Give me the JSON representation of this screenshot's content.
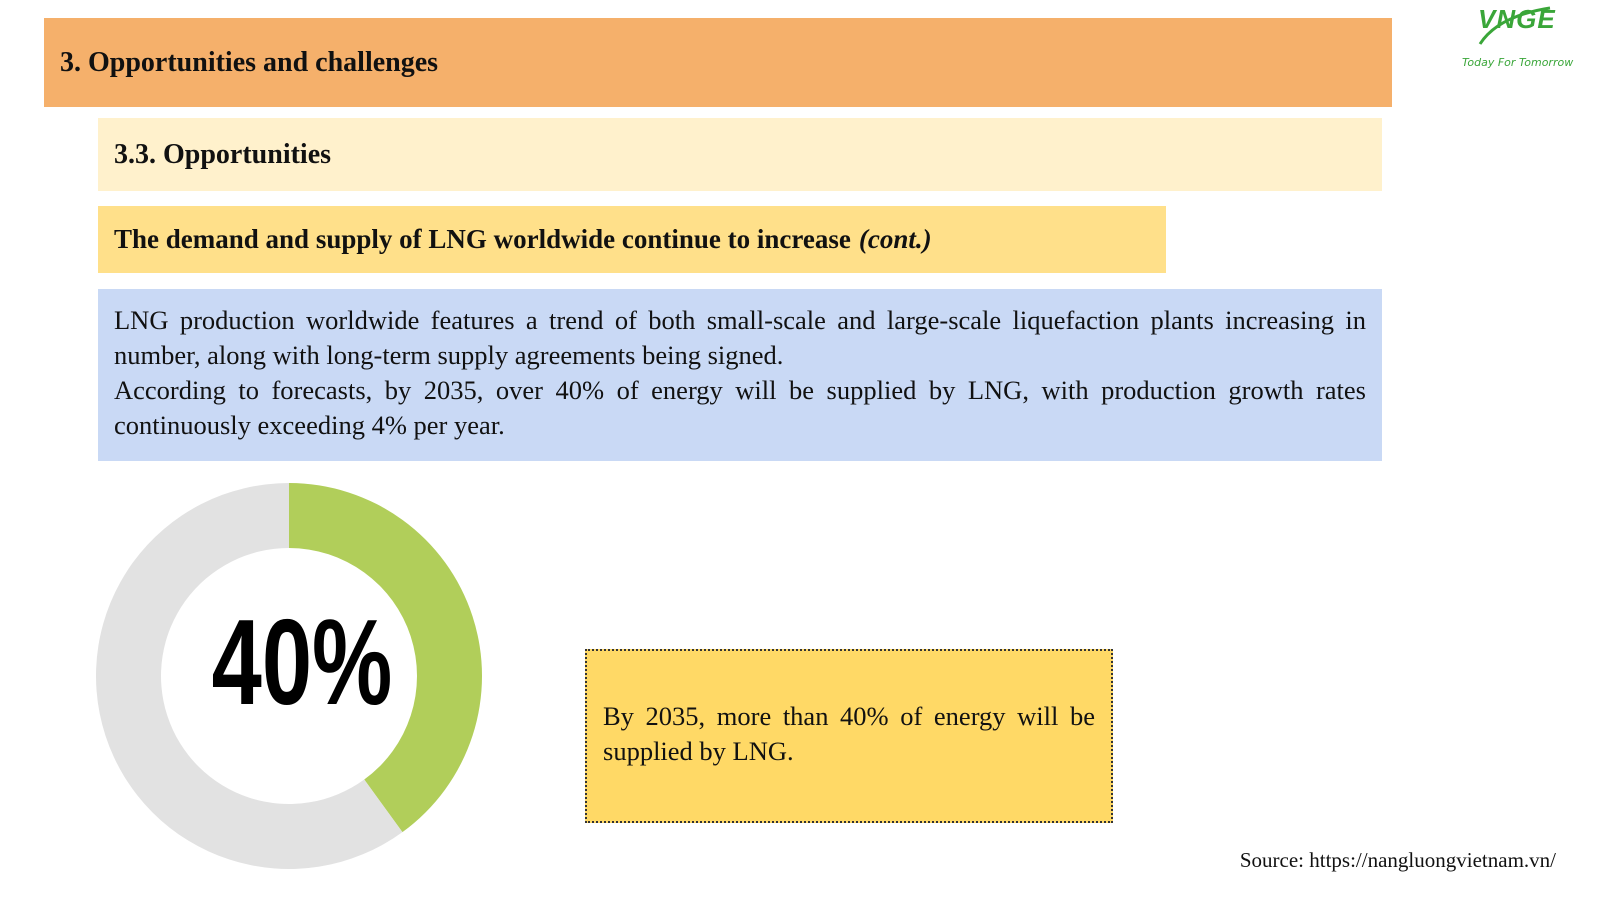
{
  "header": {
    "section_title": "3. Opportunities and challenges",
    "subsection_title": "3.3. Opportunities",
    "headline": "The demand and supply of LNG worldwide continue to increase",
    "headline_suffix": "(cont.)"
  },
  "body": {
    "paragraph_1": "LNG production worldwide features a trend of both small-scale and large-scale liquefaction plants increasing in number, along with long-term supply agreements being signed.",
    "paragraph_2": "According to forecasts, by 2035, over 40% of energy will be supplied by LNG, with production growth rates continuously exceeding 4% per year."
  },
  "chart_data": {
    "type": "pie",
    "style": "donut",
    "center_label": "40%",
    "slices": [
      {
        "value": 40,
        "color": "#b1ce5a"
      },
      {
        "value": 60,
        "color": "#e2e2e2"
      }
    ]
  },
  "callout": {
    "text": "By 2035, more than 40% of energy will be supplied by LNG."
  },
  "source": "Source: https://nangluongvietnam.vn/",
  "logo": {
    "wordmark": "VNGE",
    "tagline": "Today For Tomorrow",
    "color": "#3aa639"
  }
}
